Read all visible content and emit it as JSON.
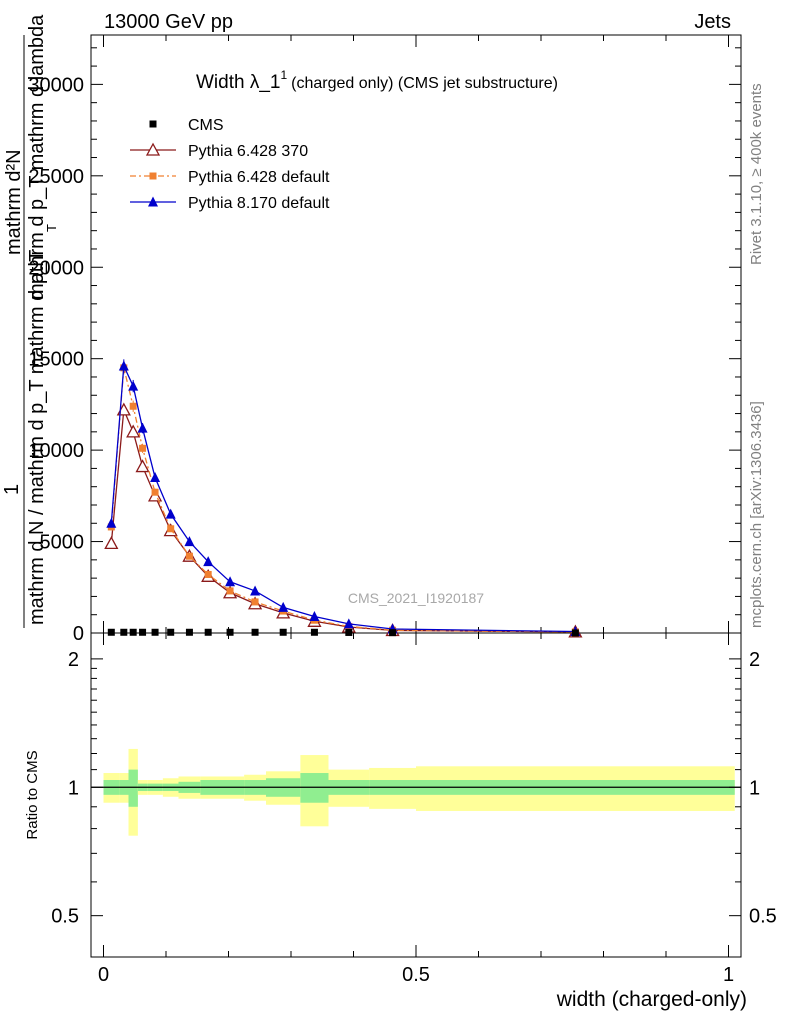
{
  "header": {
    "left": "13000 GeV pp",
    "right": "Jets"
  },
  "side_labels": {
    "rivet": "Rivet 3.1.10, ≥ 400k events",
    "mcplots": "mcplots.cern.ch [arXiv:1306.3436]"
  },
  "chart_data": {
    "type": "line",
    "title": "Width λ_1¹ (charged only) (CMS jet substructure)",
    "title_main": "Width λ_1",
    "title_sup": "1",
    "title_tail": "(charged only) (CMS jet substructure)",
    "watermark": "CMS_2021_I1920187",
    "ylabel_top": {
      "line1": "mathrm d²N",
      "line2": "mathrm d p_T mathrm d lambda",
      "line3": "1",
      "line4": "mathrm d N / mathrm d p_T mathrm d p_T",
      "sub": "T"
    },
    "xlabel": "width (charged-only)",
    "ylabel_ratio": "Ratio to CMS",
    "xlim": [
      -0.02,
      1.02
    ],
    "ylim": [
      0,
      32700
    ],
    "ratio_ylim": [
      0.4,
      2.3
    ],
    "x_ticks": [
      0,
      0.5,
      1
    ],
    "x_tick_labels": [
      "0",
      "0.5",
      "1"
    ],
    "y_ticks": [
      0,
      5000,
      10000,
      15000,
      20000,
      25000,
      30000
    ],
    "y_tick_labels": [
      "0",
      "5000",
      "10000",
      "15000",
      "20000",
      "25000",
      "30000"
    ],
    "ratio_ticks": [
      0.5,
      1,
      2
    ],
    "ratio_tick_labels": [
      "0.5",
      "1",
      "2"
    ],
    "legend_position": "top-left",
    "series": [
      {
        "name": "CMS",
        "color": "#000000",
        "marker": "square",
        "x": [
          0.0125,
          0.0325,
          0.0475,
          0.0625,
          0.0825,
          0.1075,
          0.1375,
          0.1675,
          0.2025,
          0.2425,
          0.2875,
          0.3375,
          0.3925,
          0.4625,
          0.755
        ],
        "y": [
          40,
          40,
          40,
          40,
          40,
          40,
          40,
          40,
          40,
          40,
          40,
          40,
          30,
          20,
          5
        ]
      },
      {
        "name": "Pythia 6.428 370",
        "color": "#8b1a1a",
        "marker": "open-triangle",
        "x": [
          0.0125,
          0.0325,
          0.0475,
          0.0625,
          0.0825,
          0.1075,
          0.1375,
          0.1675,
          0.2025,
          0.2425,
          0.2875,
          0.3375,
          0.3925,
          0.4625,
          0.755
        ],
        "y": [
          4900,
          12200,
          11000,
          9100,
          7500,
          5600,
          4200,
          3100,
          2200,
          1600,
          1100,
          640,
          330,
          140,
          60
        ]
      },
      {
        "name": "Pythia 6.428 default",
        "color": "#f08030",
        "marker": "filled-square",
        "x": [
          0.0125,
          0.0325,
          0.0475,
          0.0625,
          0.0825,
          0.1075,
          0.1375,
          0.1675,
          0.2025,
          0.2425,
          0.2875,
          0.3375,
          0.3925,
          0.4625,
          0.755
        ],
        "y": [
          5800,
          14500,
          12400,
          10100,
          7700,
          5700,
          4200,
          3200,
          2300,
          1700,
          1200,
          700,
          360,
          150,
          60
        ]
      },
      {
        "name": "Pythia 8.170 default",
        "color": "#0000cc",
        "marker": "filled-triangle",
        "x": [
          0.0125,
          0.0325,
          0.0475,
          0.0625,
          0.0825,
          0.1075,
          0.1375,
          0.1675,
          0.2025,
          0.2425,
          0.2875,
          0.3375,
          0.3925,
          0.4625,
          0.755
        ],
        "y": [
          6000,
          14600,
          13500,
          11200,
          8500,
          6500,
          5000,
          3900,
          2800,
          2300,
          1400,
          900,
          500,
          220,
          80
        ]
      }
    ],
    "ratio_band": {
      "edges": [
        0,
        0.025,
        0.04,
        0.055,
        0.07,
        0.095,
        0.12,
        0.155,
        0.18,
        0.225,
        0.26,
        0.315,
        0.36,
        0.425,
        0.5,
        1.01
      ],
      "inner": [
        0.04,
        0.04,
        0.1,
        0.02,
        0.02,
        0.02,
        0.03,
        0.04,
        0.04,
        0.04,
        0.05,
        0.08,
        0.04,
        0.04,
        0.04
      ],
      "outer": [
        0.08,
        0.08,
        0.23,
        0.04,
        0.04,
        0.05,
        0.06,
        0.06,
        0.06,
        0.07,
        0.09,
        0.19,
        0.1,
        0.11,
        0.12
      ],
      "inner_color": "#90ee90",
      "outer_color": "#ffff99"
    }
  }
}
